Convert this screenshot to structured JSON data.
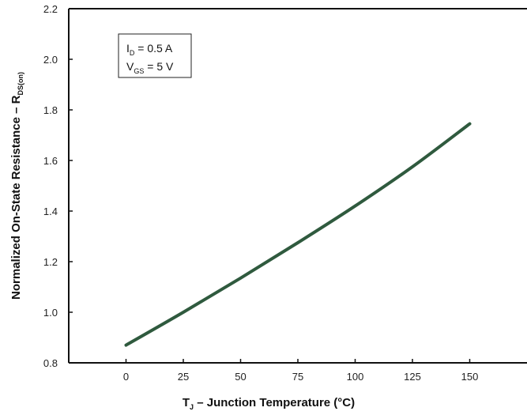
{
  "chart_data": {
    "type": "line",
    "xlabel": {
      "main": "T",
      "sub": "J",
      "rest": " – Junction Temperature (°C)"
    },
    "ylabel": {
      "main": "Normalized On-State Resistance – R",
      "sub": "DS(on)"
    },
    "xlim": [
      -25,
      175
    ],
    "ylim": [
      0.8,
      2.2
    ],
    "xticks": [
      "0",
      "25",
      "50",
      "75",
      "100",
      "125",
      "150"
    ],
    "xtick_values": [
      0,
      25,
      50,
      75,
      100,
      125,
      150
    ],
    "yticks": [
      "0.8",
      "1.0",
      "1.2",
      "1.4",
      "1.6",
      "1.8",
      "2.0",
      "2.2"
    ],
    "ytick_values": [
      0.8,
      1.0,
      1.2,
      1.4,
      1.6,
      1.8,
      2.0,
      2.2
    ],
    "grid": false,
    "series": [
      {
        "color": "#2f5a3e",
        "x": [
          0,
          25,
          50,
          75,
          100,
          125,
          150
        ],
        "y": [
          0.87,
          1.0,
          1.135,
          1.275,
          1.42,
          1.575,
          1.745
        ]
      }
    ],
    "annotation": {
      "lines": [
        {
          "main": "I",
          "sub": "D",
          "rest": " = 0.5 A"
        },
        {
          "main": "V",
          "sub": "GS",
          "rest": " = 5 V"
        }
      ],
      "placement": "top-left"
    }
  }
}
